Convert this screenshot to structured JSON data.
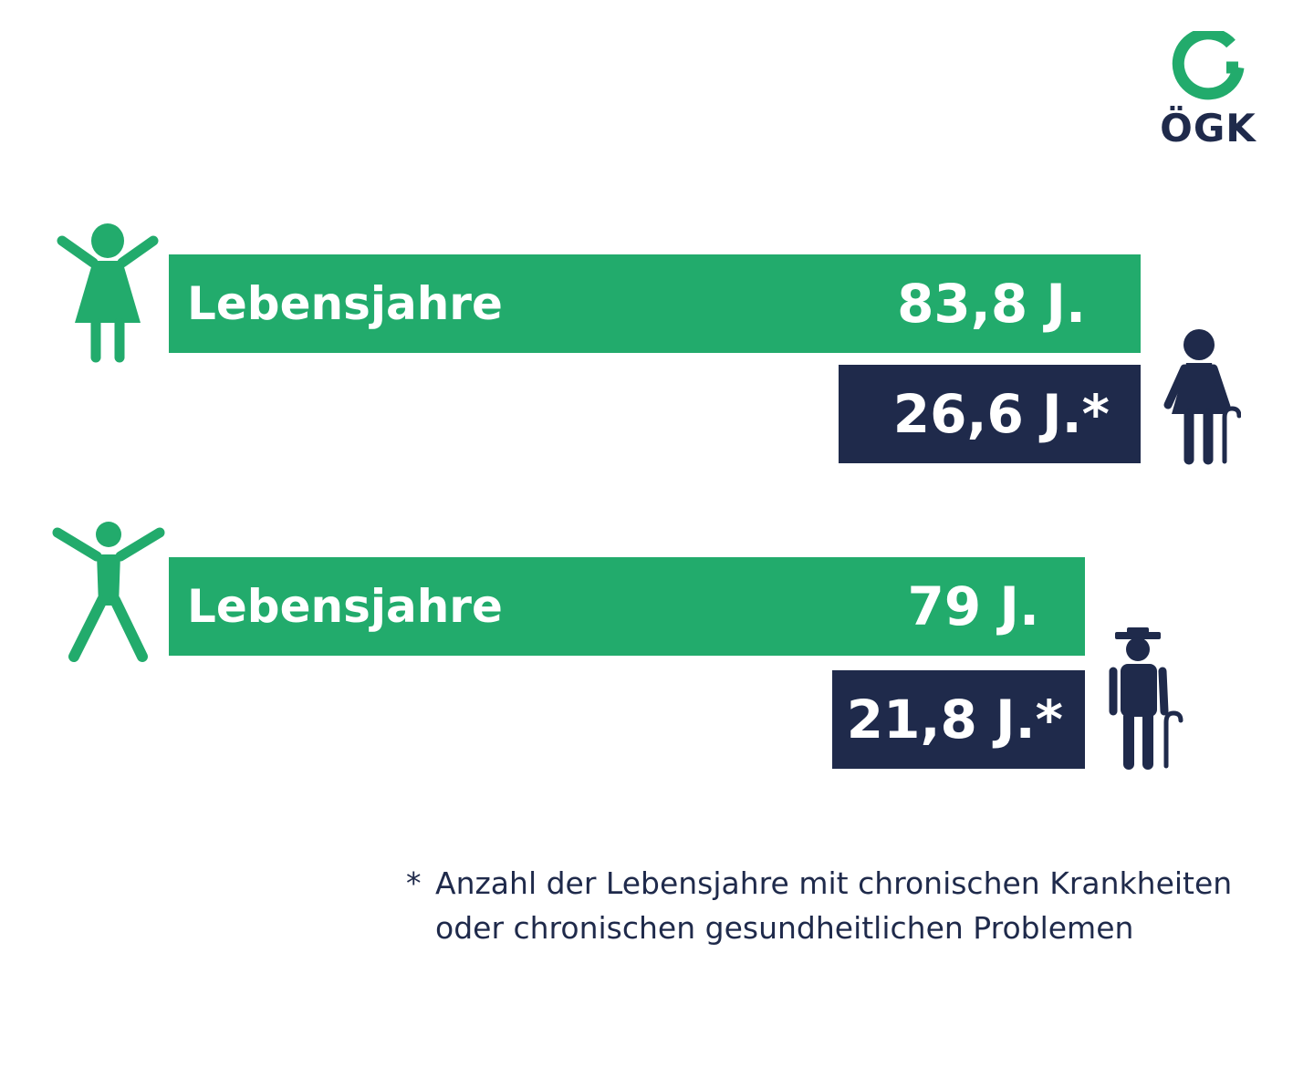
{
  "brand": {
    "logo_text": "ÖGK",
    "green": "#22ab6c",
    "navy": "#1f2a4b"
  },
  "chart_data": {
    "type": "bar",
    "groups": [
      {
        "icon_young": "woman-arms-raised-icon",
        "icon_old": "elderly-woman-with-cane-icon",
        "life_years": {
          "label": "Lebensjahre",
          "value": 83.8,
          "text": "83,8 J."
        },
        "chronic_years": {
          "value": 26.6,
          "text": "26,6 J.*"
        }
      },
      {
        "icon_young": "man-arms-raised-icon",
        "icon_old": "elderly-man-with-hat-and-cane-icon",
        "life_years": {
          "label": "Lebensjahre",
          "value": 79,
          "text": "79 J."
        },
        "chronic_years": {
          "value": 21.8,
          "text": "21,8 J.*"
        }
      }
    ]
  },
  "footnote": {
    "marker": "*",
    "text": "Anzahl der Lebensjahre mit chronischen Krankheiten oder chronischen gesundheitlichen Problemen"
  }
}
